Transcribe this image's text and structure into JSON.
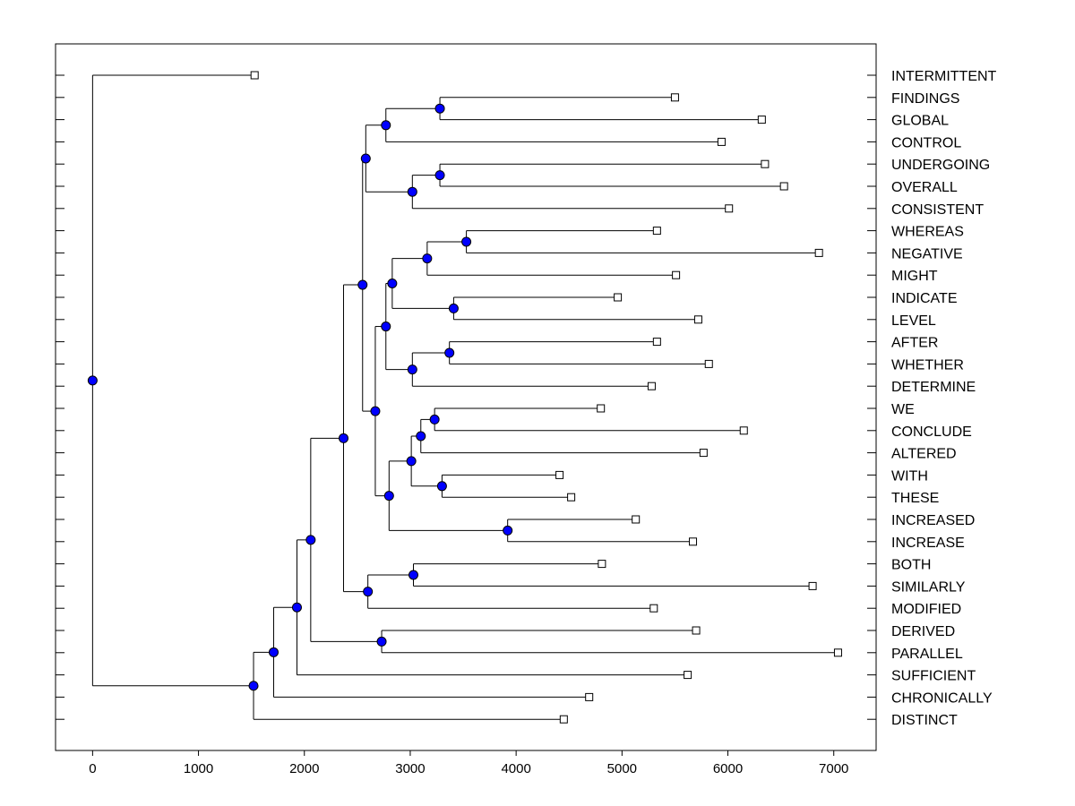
{
  "chart_data": {
    "type": "dendrogram",
    "title": "",
    "xlabel": "",
    "ylabel": "",
    "xlim": [
      -350,
      7400
    ],
    "xticks": [
      0,
      1000,
      2000,
      3000,
      4000,
      5000,
      6000,
      7000
    ],
    "xtick_labels": [
      "0",
      "1000",
      "2000",
      "3000",
      "4000",
      "5000",
      "6000",
      "7000"
    ],
    "leaves": [
      {
        "label": "INTERMITTENT",
        "x": 1530
      },
      {
        "label": "FINDINGS",
        "x": 5500
      },
      {
        "label": "GLOBAL",
        "x": 6320
      },
      {
        "label": "CONTROL",
        "x": 5940
      },
      {
        "label": "UNDERGOING",
        "x": 6350
      },
      {
        "label": "OVERALL",
        "x": 6530
      },
      {
        "label": "CONSISTENT",
        "x": 6010
      },
      {
        "label": "WHEREAS",
        "x": 5330
      },
      {
        "label": "NEGATIVE",
        "x": 6860
      },
      {
        "label": "MIGHT",
        "x": 5510
      },
      {
        "label": "INDICATE",
        "x": 4960
      },
      {
        "label": "LEVEL",
        "x": 5720
      },
      {
        "label": "AFTER",
        "x": 5330
      },
      {
        "label": "WHETHER",
        "x": 5820
      },
      {
        "label": "DETERMINE",
        "x": 5280
      },
      {
        "label": "WE",
        "x": 4800
      },
      {
        "label": "CONCLUDE",
        "x": 6150
      },
      {
        "label": "ALTERED",
        "x": 5770
      },
      {
        "label": "WITH",
        "x": 4410
      },
      {
        "label": "THESE",
        "x": 4520
      },
      {
        "label": "INCREASED",
        "x": 5130
      },
      {
        "label": "INCREASE",
        "x": 5670
      },
      {
        "label": "BOTH",
        "x": 4810
      },
      {
        "label": "SIMILARLY",
        "x": 6800
      },
      {
        "label": "MODIFIED",
        "x": 5300
      },
      {
        "label": "DERIVED",
        "x": 5700
      },
      {
        "label": "PARALLEL",
        "x": 7040
      },
      {
        "label": "SUFFICIENT",
        "x": 5620
      },
      {
        "label": "CHRONICALLY",
        "x": 4690
      },
      {
        "label": "DISTINCT",
        "x": 4450
      }
    ],
    "merges": [
      {
        "a": "L1",
        "b": "L2",
        "x": 3280
      },
      {
        "a": "N0",
        "b": "L3",
        "x": 2770
      },
      {
        "a": "L4",
        "b": "L5",
        "x": 3280
      },
      {
        "a": "N2",
        "b": "L6",
        "x": 3020
      },
      {
        "a": "N1",
        "b": "N3",
        "x": 2580
      },
      {
        "a": "L7",
        "b": "L8",
        "x": 3530
      },
      {
        "a": "N5",
        "b": "L9",
        "x": 3160
      },
      {
        "a": "L10",
        "b": "L11",
        "x": 3410
      },
      {
        "a": "N6",
        "b": "N7",
        "x": 2830
      },
      {
        "a": "L12",
        "b": "L13",
        "x": 3370
      },
      {
        "a": "N9",
        "b": "L14",
        "x": 3020
      },
      {
        "a": "N8",
        "b": "N10",
        "x": 2770
      },
      {
        "a": "L15",
        "b": "L16",
        "x": 3230
      },
      {
        "a": "N12",
        "b": "L17",
        "x": 3100
      },
      {
        "a": "L18",
        "b": "L19",
        "x": 3300
      },
      {
        "a": "N13",
        "b": "N14",
        "x": 3010
      },
      {
        "a": "L20",
        "b": "L21",
        "x": 3920
      },
      {
        "a": "N15",
        "b": "N16",
        "x": 2800
      },
      {
        "a": "N11",
        "b": "N17",
        "x": 2670
      },
      {
        "a": "N4",
        "b": "N18",
        "x": 2550
      },
      {
        "a": "L22",
        "b": "L23",
        "x": 3030
      },
      {
        "a": "N20",
        "b": "L24",
        "x": 2600
      },
      {
        "a": "N19",
        "b": "N21",
        "x": 2370
      },
      {
        "a": "L25",
        "b": "L26",
        "x": 2730
      },
      {
        "a": "N22",
        "b": "N23",
        "x": 2060
      },
      {
        "a": "N24",
        "b": "L27",
        "x": 1930
      },
      {
        "a": "N25",
        "b": "L28",
        "x": 1710
      },
      {
        "a": "N26",
        "b": "L29",
        "x": 1520
      },
      {
        "a": "L0",
        "b": "N27",
        "x": 0
      }
    ],
    "colors": {
      "line": "#000000",
      "node_fill": "#0000ff",
      "leaf_fill": "#ffffff"
    },
    "grid": false,
    "legend": "none"
  }
}
